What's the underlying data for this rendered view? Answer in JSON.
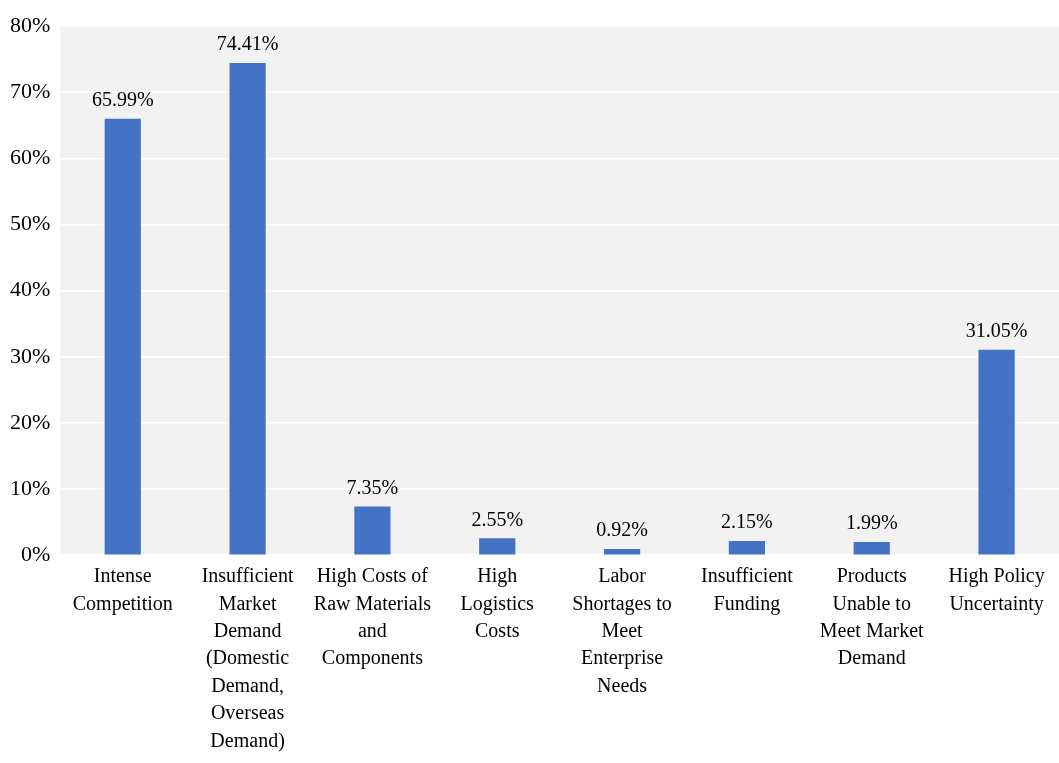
{
  "chart_data": {
    "type": "bar",
    "categories": [
      "Intense Competition",
      "Insufficient Market Demand (Domestic Demand, Overseas Demand)",
      "High Costs of Raw Materials and Components",
      "High Logistics Costs",
      "Labor Shortages to Meet Enterprise Needs",
      "Insufficient Funding",
      "Products Unable to Meet Market Demand",
      "High Policy Uncertainty"
    ],
    "values": [
      65.99,
      74.41,
      7.35,
      2.55,
      0.92,
      2.15,
      1.99,
      31.05
    ],
    "value_labels": [
      "65.99%",
      "74.41%",
      "7.35%",
      "2.55%",
      "0.92%",
      "2.15%",
      "1.99%",
      "31.05%"
    ],
    "color": "#4472c4",
    "ylim": [
      0,
      80
    ],
    "yticks": [
      {
        "value": 0,
        "label": "0%"
      },
      {
        "value": 10,
        "label": "10%"
      },
      {
        "value": 20,
        "label": "20%"
      },
      {
        "value": 30,
        "label": "30%"
      },
      {
        "value": 40,
        "label": "40%"
      },
      {
        "value": 50,
        "label": "50%"
      },
      {
        "value": 60,
        "label": "60%"
      },
      {
        "value": 70,
        "label": "70%"
      },
      {
        "value": 80,
        "label": "80%"
      }
    ],
    "grid": "y",
    "legend": false
  }
}
